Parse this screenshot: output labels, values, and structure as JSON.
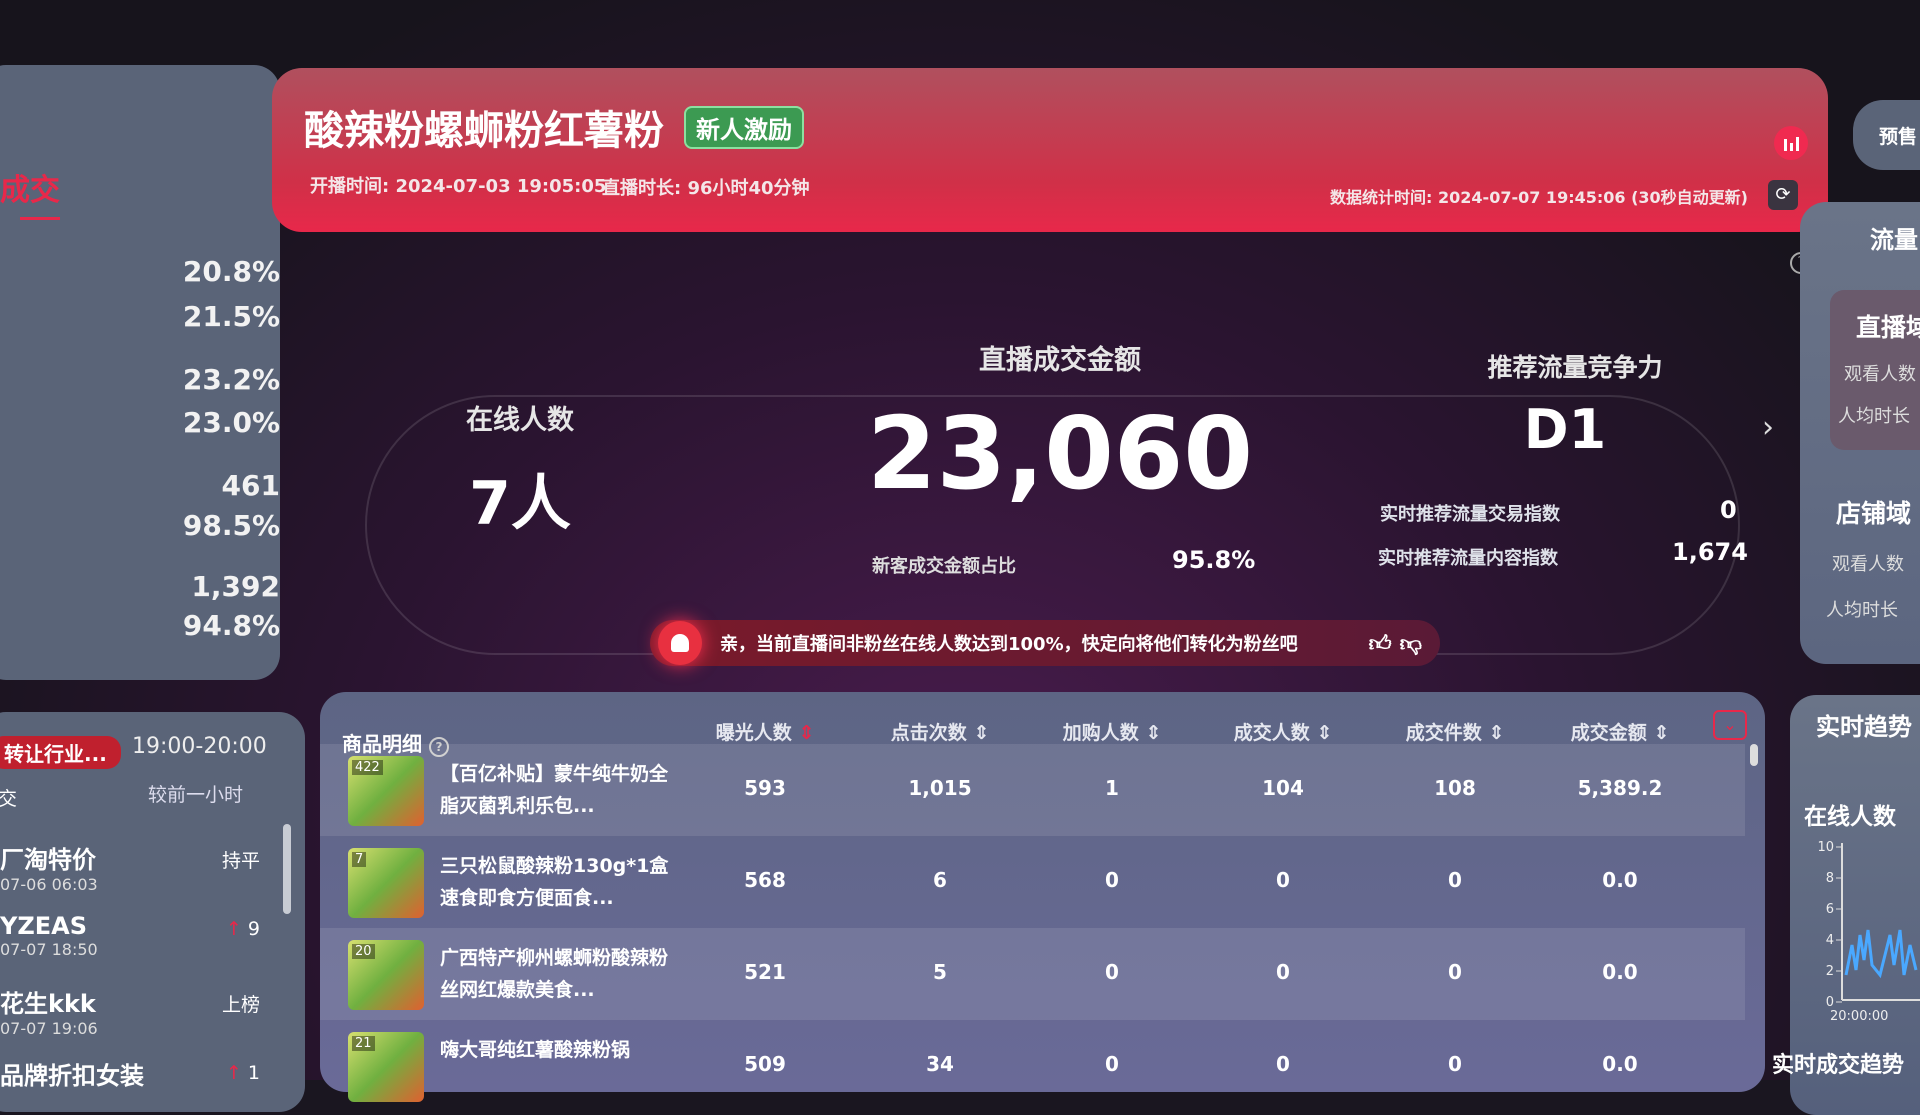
{
  "left_stats": {
    "highlight": "成交",
    "values": [
      "20.8%",
      "21.5%",
      "23.2%",
      "23.0%",
      "461",
      "98.5%",
      "1,392",
      "94.8%"
    ]
  },
  "left_rank": {
    "tag": "转让行业...",
    "time_range": "19:00-20:00",
    "col_label": "交",
    "compare": "较前一小时",
    "items": [
      {
        "name": "厂淘特价",
        "time": "07-06 06:03",
        "change": "持平"
      },
      {
        "name": "YZEAS",
        "time": "07-07 18:50",
        "change": "9",
        "arrow": "up"
      },
      {
        "name": "花生kkk",
        "time": "07-07 19:06",
        "change": "上榜"
      },
      {
        "name": "品牌折扣女装",
        "time": "",
        "change": "1",
        "arrow": "up"
      }
    ]
  },
  "header": {
    "title": "酸辣粉螺蛳粉红薯粉",
    "badge": "新人激励",
    "start_time": "开播时间: 2024-07-03 19:05:05",
    "duration": "直播时长: 96小时40分钟",
    "stat_time": "数据统计时间: 2024-07-07 19:45:06 (30秒自动更新)"
  },
  "metrics": {
    "online_label": "在线人数",
    "online_value": "7人",
    "gmv_label": "直播成交金额",
    "gmv_value": "23,060",
    "new_ratio_label": "新客成交金额占比",
    "new_ratio_value": "95.8%",
    "rec_label": "推荐流量竞争力",
    "rec_value": "D1",
    "trade_index_label": "实时推荐流量交易指数",
    "trade_index_value": "0",
    "content_index_label": "实时推荐流量内容指数",
    "content_index_value": "1,674"
  },
  "alert": {
    "text": "亲，当前直播间非粉丝在线人数达到100%，快定向将他们转化为粉丝吧"
  },
  "table": {
    "title": "商品明细",
    "columns": [
      "曝光人数",
      "点击次数",
      "加购人数",
      "成交人数",
      "成交件数",
      "成交金额"
    ],
    "rows": [
      {
        "rank": "422",
        "name": "【百亿补贴】蒙牛纯牛奶全脂灭菌乳利乐包...",
        "values": [
          "593",
          "1,015",
          "1",
          "104",
          "108",
          "5,389.2"
        ]
      },
      {
        "rank": "7",
        "name": "三只松鼠酸辣粉130g*1盒速食即食方便面食...",
        "values": [
          "568",
          "6",
          "0",
          "0",
          "0",
          "0.0"
        ]
      },
      {
        "rank": "20",
        "name": "广西特产柳州螺蛳粉酸辣粉丝网红爆款美食...",
        "values": [
          "521",
          "5",
          "0",
          "0",
          "0",
          "0.0"
        ]
      },
      {
        "rank": "21",
        "name": "嗨大哥纯红薯酸辣粉锅",
        "values": [
          "509",
          "34",
          "0",
          "0",
          "0",
          "0.0"
        ]
      }
    ]
  },
  "right": {
    "presale": "预售",
    "traffic_title": "流量",
    "live_domain": "直播域",
    "shop_domain": "店铺域",
    "viewers": "观看人数",
    "avg_time": "人均时长",
    "trend_title": "实时趋势",
    "online_label": "在线人数",
    "y_ticks": [
      "10",
      "8",
      "6",
      "4",
      "2",
      "0"
    ],
    "x_tick": "20:00:00",
    "gmv_trend": "实时成交趋势"
  },
  "colors": {
    "accent": "#e8284a",
    "badge": "#3c9a52",
    "panel": "#5a6478"
  }
}
